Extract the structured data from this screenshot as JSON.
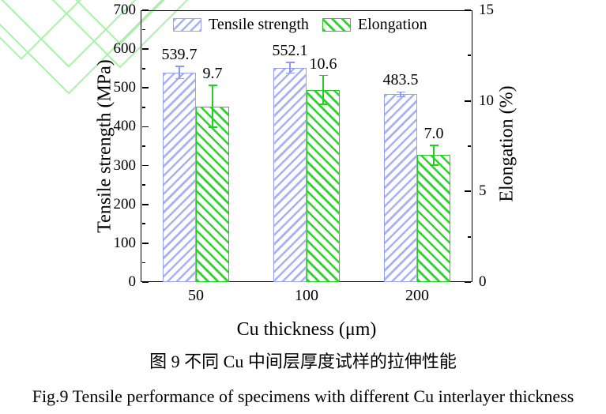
{
  "figure": {
    "caption_zh": "图 9  不同 Cu 中间层厚度试样的拉伸性能",
    "caption_en": "Fig.9 Tensile performance of specimens with different Cu interlayer thickness"
  },
  "chart_data": {
    "type": "bar",
    "categories": [
      "50",
      "100",
      "200"
    ],
    "xlabel": "Cu thickness (μm)",
    "ylabel_left": "Tensile strength (MPa)",
    "ylabel_right": "Elongation (%)",
    "ylim_left": [
      0,
      700
    ],
    "yticks_left": [
      0,
      100,
      200,
      300,
      400,
      500,
      600,
      700
    ],
    "ylim_right": [
      0,
      15
    ],
    "yticks_right": [
      0,
      5,
      10,
      15
    ],
    "grid": false,
    "legend_position": "top-inside",
    "series": [
      {
        "key": "tensile",
        "name": "Tensile strength",
        "axis": "left",
        "values": [
          539.7,
          552.1,
          483.5
        ],
        "labels": [
          "539.7",
          "552.1",
          "483.5"
        ],
        "errors": [
          16,
          14,
          6
        ],
        "color": "#a8b2f2",
        "hatch": "/"
      },
      {
        "key": "elong",
        "name": "Elongation",
        "axis": "right",
        "values": [
          9.7,
          10.6,
          7.0
        ],
        "labels": [
          "9.7",
          "10.6",
          "7.0"
        ],
        "errors": [
          1.15,
          0.8,
          0.55
        ],
        "color": "#2ed32e",
        "hatch": "\\"
      }
    ]
  },
  "colors": {
    "watermark": "#a9f1a9",
    "axis": "#000000",
    "tensile_edge": "#97a3ef",
    "elongation_edge": "#27cb27"
  }
}
